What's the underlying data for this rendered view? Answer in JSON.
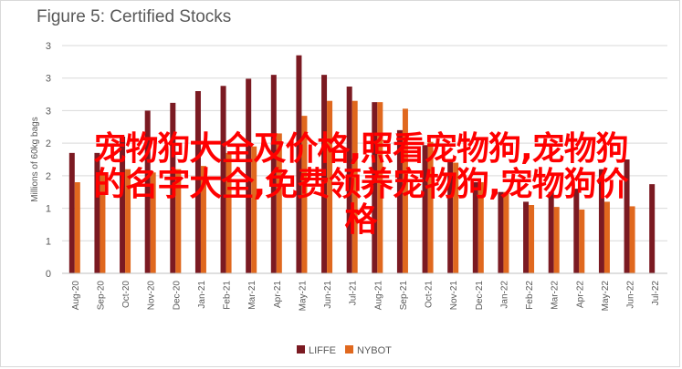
{
  "chart_data": {
    "type": "bar",
    "title": "Figure 5: Certified Stocks",
    "ylabel": "Millions of 60kg bags",
    "xlabel": "",
    "ylim": [
      0,
      3.5
    ],
    "yticks": [
      "0",
      "1",
      "1",
      "2",
      "2",
      "3",
      "3",
      "3"
    ],
    "categories": [
      "Aug-20",
      "Sep-20",
      "Oct-20",
      "Nov-20",
      "Dec-20",
      "Jan-21",
      "Feb-21",
      "Mar-21",
      "Apr-21",
      "May-21",
      "Jun-21",
      "Jul-21",
      "Aug-21",
      "Sep-21",
      "Oct-21",
      "Nov-21",
      "Dec-21",
      "Jan-22",
      "Feb-22",
      "Mar-22",
      "Apr-22",
      "May-22",
      "Jun-22",
      "Jul-22"
    ],
    "series": [
      {
        "name": "LIFFE",
        "color": "#7b1a22",
        "values": [
          1.85,
          1.85,
          2.1,
          2.5,
          2.62,
          2.8,
          2.88,
          2.99,
          3.05,
          3.35,
          3.05,
          2.87,
          2.63,
          2.2,
          1.97,
          1.75,
          1.4,
          1.25,
          1.1,
          1.25,
          1.3,
          1.6,
          1.75,
          1.37
        ]
      },
      {
        "name": "NYBOT",
        "color": "#e0681e",
        "values": [
          1.4,
          1.55,
          1.6,
          1.55,
          1.6,
          1.65,
          1.85,
          1.95,
          2.15,
          2.42,
          2.65,
          2.65,
          2.63,
          2.53,
          2.02,
          1.7,
          1.4,
          1.25,
          1.05,
          1.02,
          0.98,
          1.1,
          1.03,
          null
        ]
      }
    ],
    "legend_position": "bottom",
    "grid": true
  },
  "overlay_text": "宠物狗大全及价格,照看宠物狗,宠物狗\n的名字大全,免费领养宠物狗,宠物狗价\n格"
}
